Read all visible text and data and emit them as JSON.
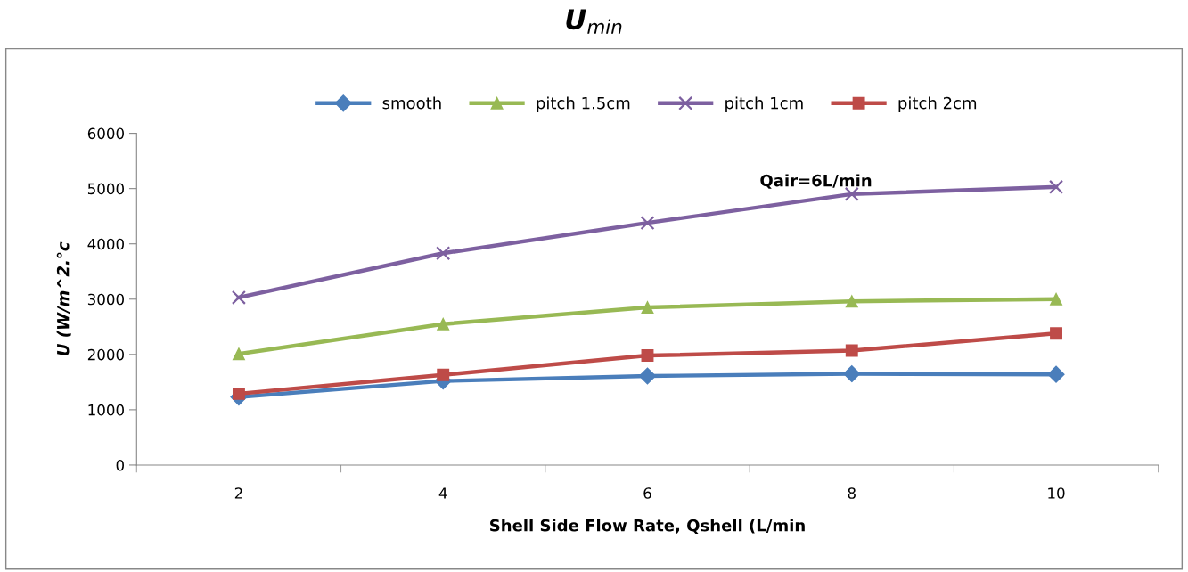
{
  "chart_data": {
    "type": "line",
    "title": "U$_{min}$",
    "xlabel": "Shell Side Flow Rate, Qshell (L/min",
    "ylabel": "U (W/m^2.°c",
    "categories": [
      "2",
      "4",
      "6",
      "8",
      "10"
    ],
    "series": [
      {
        "name": "smooth",
        "color": "#4a7ebb",
        "marker": "diamond",
        "values": [
          1230,
          1520,
          1610,
          1650,
          1640
        ]
      },
      {
        "name": "pitch 1.5cm",
        "color": "#98b954",
        "marker": "triangle",
        "values": [
          2010,
          2550,
          2850,
          2960,
          3000
        ]
      },
      {
        "name": "pitch 1cm",
        "color": "#7d60a0",
        "marker": "cross",
        "values": [
          3030,
          3830,
          4380,
          4900,
          5030
        ]
      },
      {
        "name": "pitch 2cm",
        "color": "#be4b48",
        "marker": "square",
        "values": [
          1290,
          1630,
          1980,
          2070,
          2380
        ]
      }
    ],
    "ylim": [
      0,
      6000
    ],
    "yticks": [
      0,
      1000,
      2000,
      3000,
      4000,
      5000,
      6000
    ],
    "grid": false,
    "legend": "top",
    "line_style": "solid",
    "annotations": [
      "Qair=6L/min"
    ]
  }
}
